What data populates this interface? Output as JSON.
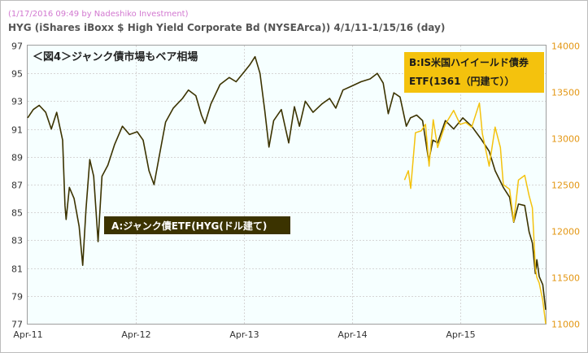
{
  "header": {
    "stamp": "(1/17/2016 09:49 by Nadeshiko Investment)",
    "title": "HYG (iShares iBoxx $ High Yield Corporate Bd (NYSEArca))  4/1/11-1/15/16 (day)"
  },
  "annotations": {
    "figure_title": "＜図4＞ジャンク債市場もベア相場",
    "label_a": "A:ジャンク債ETF(HYG(ドル建て)",
    "label_b_line1": "B:IS米国ハイイールド債券",
    "label_b_line2": "ETF(1361（円建て））"
  },
  "colors": {
    "series_a": "#3b3300",
    "series_b": "#f4c20d",
    "box_a_bg": "#3b3300",
    "box_b_bg": "#f4c20d",
    "right_axis": "#e39612"
  },
  "chart_data": {
    "type": "line",
    "title": "HYG (iShares iBoxx $ High Yield Corporate Bd (NYSEArca))  4/1/11-1/15/16 (day)",
    "x_ticks": [
      "Apr-11",
      "Apr-12",
      "Apr-13",
      "Apr-14",
      "Apr-15"
    ],
    "y_left_ticks": [
      77,
      79,
      81,
      83,
      85,
      87,
      89,
      91,
      93,
      95,
      97
    ],
    "y_right_ticks": [
      11000,
      11500,
      12000,
      12500,
      13000,
      13500,
      14000
    ],
    "ylim_left": [
      77,
      97
    ],
    "ylim_right": [
      11000,
      14000
    ],
    "xlim": [
      "2011-04-01",
      "2016-01-15"
    ],
    "grid": true,
    "series": [
      {
        "name": "A:ジャンク債ETF(HYG(ドル建て)",
        "axis": "left",
        "points": [
          [
            "2011-04-01",
            91.8
          ],
          [
            "2011-04-20",
            92.4
          ],
          [
            "2011-05-10",
            92.7
          ],
          [
            "2011-06-01",
            92.2
          ],
          [
            "2011-06-20",
            91.0
          ],
          [
            "2011-07-08",
            92.2
          ],
          [
            "2011-07-28",
            90.2
          ],
          [
            "2011-08-05",
            85.5
          ],
          [
            "2011-08-09",
            84.5
          ],
          [
            "2011-08-20",
            86.8
          ],
          [
            "2011-09-05",
            86.0
          ],
          [
            "2011-09-22",
            84.0
          ],
          [
            "2011-10-04",
            81.2
          ],
          [
            "2011-10-15",
            85.2
          ],
          [
            "2011-10-28",
            88.8
          ],
          [
            "2011-11-10",
            87.6
          ],
          [
            "2011-11-25",
            82.9
          ],
          [
            "2011-12-08",
            87.6
          ],
          [
            "2011-12-28",
            88.4
          ],
          [
            "2012-01-20",
            89.9
          ],
          [
            "2012-02-15",
            91.2
          ],
          [
            "2012-03-10",
            90.6
          ],
          [
            "2012-04-05",
            90.8
          ],
          [
            "2012-04-25",
            90.2
          ],
          [
            "2012-05-15",
            88.0
          ],
          [
            "2012-06-01",
            87.0
          ],
          [
            "2012-06-20",
            89.2
          ],
          [
            "2012-07-10",
            91.5
          ],
          [
            "2012-08-05",
            92.5
          ],
          [
            "2012-09-05",
            93.2
          ],
          [
            "2012-09-25",
            93.8
          ],
          [
            "2012-10-20",
            93.4
          ],
          [
            "2012-11-08",
            92.0
          ],
          [
            "2012-11-20",
            91.4
          ],
          [
            "2012-12-10",
            92.8
          ],
          [
            "2013-01-10",
            94.2
          ],
          [
            "2013-02-10",
            94.7
          ],
          [
            "2013-03-05",
            94.4
          ],
          [
            "2013-04-05",
            95.2
          ],
          [
            "2013-04-20",
            95.6
          ],
          [
            "2013-05-08",
            96.2
          ],
          [
            "2013-05-25",
            95.0
          ],
          [
            "2013-06-10",
            92.3
          ],
          [
            "2013-06-24",
            89.7
          ],
          [
            "2013-07-10",
            91.6
          ],
          [
            "2013-08-05",
            92.4
          ],
          [
            "2013-08-30",
            90.0
          ],
          [
            "2013-09-18",
            92.6
          ],
          [
            "2013-10-05",
            91.2
          ],
          [
            "2013-10-25",
            93.0
          ],
          [
            "2013-11-20",
            92.2
          ],
          [
            "2013-12-20",
            92.8
          ],
          [
            "2014-01-15",
            93.2
          ],
          [
            "2014-02-05",
            92.5
          ],
          [
            "2014-03-01",
            93.8
          ],
          [
            "2014-04-01",
            94.1
          ],
          [
            "2014-05-01",
            94.4
          ],
          [
            "2014-06-01",
            94.6
          ],
          [
            "2014-06-25",
            95.0
          ],
          [
            "2014-07-15",
            94.3
          ],
          [
            "2014-08-01",
            92.1
          ],
          [
            "2014-08-20",
            93.6
          ],
          [
            "2014-09-10",
            93.3
          ],
          [
            "2014-10-01",
            91.2
          ],
          [
            "2014-10-15",
            91.8
          ],
          [
            "2014-11-05",
            92.0
          ],
          [
            "2014-11-25",
            91.6
          ],
          [
            "2014-12-16",
            88.7
          ],
          [
            "2014-12-30",
            90.2
          ],
          [
            "2015-01-15",
            90.0
          ],
          [
            "2015-02-10",
            91.6
          ],
          [
            "2015-03-10",
            91.0
          ],
          [
            "2015-04-10",
            91.8
          ],
          [
            "2015-05-10",
            91.2
          ],
          [
            "2015-06-10",
            90.3
          ],
          [
            "2015-07-08",
            89.4
          ],
          [
            "2015-07-28",
            88.0
          ],
          [
            "2015-08-25",
            86.8
          ],
          [
            "2015-09-15",
            86.1
          ],
          [
            "2015-09-29",
            84.3
          ],
          [
            "2015-10-15",
            85.6
          ],
          [
            "2015-11-05",
            85.5
          ],
          [
            "2015-11-20",
            83.6
          ],
          [
            "2015-12-01",
            82.8
          ],
          [
            "2015-12-11",
            80.6
          ],
          [
            "2015-12-16",
            81.6
          ],
          [
            "2015-12-24",
            80.4
          ],
          [
            "2016-01-05",
            79.8
          ],
          [
            "2016-01-15",
            78.0
          ]
        ]
      },
      {
        "name": "B:IS米国ハイイールド債券ETF(1361（円建て））",
        "axis": "right",
        "points": [
          [
            "2014-09-25",
            12550
          ],
          [
            "2014-10-08",
            12650
          ],
          [
            "2014-10-16",
            12460
          ],
          [
            "2014-11-01",
            13060
          ],
          [
            "2014-11-20",
            13080
          ],
          [
            "2014-12-05",
            13150
          ],
          [
            "2014-12-17",
            12700
          ],
          [
            "2014-12-31",
            13200
          ],
          [
            "2015-01-15",
            12900
          ],
          [
            "2015-02-10",
            13150
          ],
          [
            "2015-03-10",
            13300
          ],
          [
            "2015-04-01",
            13150
          ],
          [
            "2015-04-20",
            13170
          ],
          [
            "2015-05-10",
            13120
          ],
          [
            "2015-06-05",
            13380
          ],
          [
            "2015-06-15",
            13050
          ],
          [
            "2015-07-08",
            12700
          ],
          [
            "2015-07-28",
            13120
          ],
          [
            "2015-08-15",
            12900
          ],
          [
            "2015-08-25",
            12500
          ],
          [
            "2015-09-15",
            12450
          ],
          [
            "2015-09-29",
            12100
          ],
          [
            "2015-10-15",
            12550
          ],
          [
            "2015-11-05",
            12600
          ],
          [
            "2015-11-20",
            12380
          ],
          [
            "2015-12-01",
            12250
          ],
          [
            "2015-12-11",
            11600
          ],
          [
            "2015-12-16",
            11500
          ],
          [
            "2015-12-24",
            11440
          ],
          [
            "2016-01-05",
            11250
          ],
          [
            "2016-01-15",
            11000
          ]
        ]
      }
    ]
  }
}
